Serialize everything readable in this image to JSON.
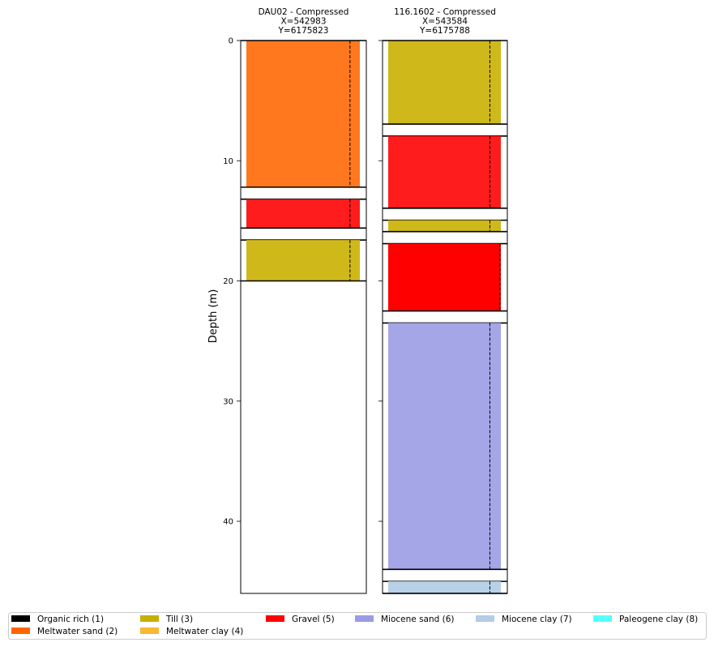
{
  "chart_data": {
    "type": "borehole-log",
    "ylabel": "Depth (m)",
    "ylim": [
      0,
      46
    ],
    "yticks": [
      0,
      10,
      20,
      30,
      40
    ],
    "boreholes": [
      {
        "title": "DAU02 - Compressed",
        "x_label": "X=542983",
        "y_label": "Y=6175823",
        "layers": [
          {
            "top": 0,
            "bottom": 12.2,
            "unit": "Meltwater sand (2)",
            "color": "#ff781e"
          },
          {
            "top": 12.2,
            "bottom": 13.2,
            "unit": "",
            "color": "#ffffff"
          },
          {
            "top": 13.2,
            "bottom": 15.6,
            "unit": "Gravel (5)",
            "color": "#ff1c1c"
          },
          {
            "top": 15.6,
            "bottom": 16.6,
            "unit": "",
            "color": "#ffffff"
          },
          {
            "top": 16.6,
            "bottom": 20.0,
            "unit": "Till (3)",
            "color": "#cfb81a"
          }
        ]
      },
      {
        "title": "116.1602 - Compressed",
        "x_label": "X=543584",
        "y_label": "Y=6175788",
        "layers": [
          {
            "top": 0,
            "bottom": 6.95,
            "unit": "Till (3)",
            "color": "#cfb81a"
          },
          {
            "top": 6.95,
            "bottom": 7.95,
            "unit": "",
            "color": "#ffffff"
          },
          {
            "top": 7.95,
            "bottom": 13.95,
            "unit": "Gravel (5)",
            "color": "#ff1c1c"
          },
          {
            "top": 13.95,
            "bottom": 14.95,
            "unit": "",
            "color": "#ffffff"
          },
          {
            "top": 14.95,
            "bottom": 15.9,
            "unit": "Till (3)",
            "color": "#cfb81a"
          },
          {
            "top": 15.9,
            "bottom": 16.9,
            "unit": "",
            "color": "#ffffff"
          },
          {
            "top": 16.9,
            "bottom": 22.5,
            "unit": "Gravel (5)",
            "color": "#ff0000"
          },
          {
            "top": 22.5,
            "bottom": 23.5,
            "unit": "",
            "color": "#ffffff"
          },
          {
            "top": 23.5,
            "bottom": 44.0,
            "unit": "Miocene sand (6)",
            "color": "#a4a6e8"
          },
          {
            "top": 44.0,
            "bottom": 45.0,
            "unit": "",
            "color": "#ffffff"
          },
          {
            "top": 45.0,
            "bottom": 46.0,
            "unit": "Miocene clay (7)",
            "color": "#b8d0e8"
          }
        ]
      }
    ],
    "legend": {
      "placement": "bottom",
      "entries": [
        {
          "label": "Organic rich (1)",
          "color": "#000000"
        },
        {
          "label": "Meltwater sand (2)",
          "color": "#ff6600"
        },
        {
          "label": "Till (3)",
          "color": "#c8ae00"
        },
        {
          "label": "Meltwater clay (4)",
          "color": "#fbb735"
        },
        {
          "label": "Gravel (5)",
          "color": "#ff0000"
        },
        {
          "label": "Miocene sand (6)",
          "color": "#9b9be3"
        },
        {
          "label": "Miocene clay (7)",
          "color": "#b3cde5"
        },
        {
          "label": "Paleogene clay (8)",
          "color": "#55ffff"
        }
      ]
    }
  }
}
